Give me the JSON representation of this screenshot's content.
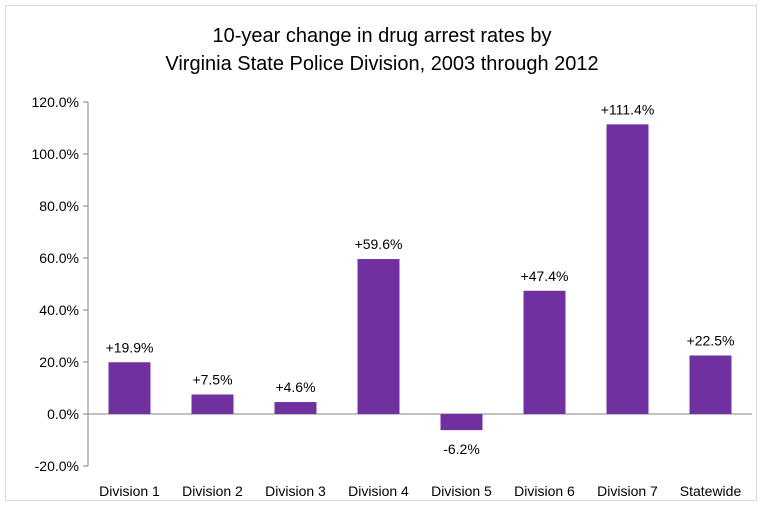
{
  "chart_data": {
    "type": "bar",
    "title_lines": [
      "10-year change in drug arrest rates by",
      "Virginia State Police Division, 2003 through 2012"
    ],
    "categories": [
      "Division 1",
      "Division 2",
      "Division 3",
      "Division 4",
      "Division 5",
      "Division 6",
      "Division 7",
      "Statewide"
    ],
    "values": [
      19.9,
      7.5,
      4.6,
      59.6,
      -6.2,
      47.4,
      111.4,
      22.5
    ],
    "data_labels": [
      "+19.9%",
      "+7.5%",
      "+4.6%",
      "+59.6%",
      "-6.2%",
      "+47.4%",
      "+111.4%",
      "+22.5%"
    ],
    "y_ticks": [
      120,
      100,
      80,
      60,
      40,
      20,
      0,
      -20
    ],
    "y_tick_labels": [
      "120.0%",
      "100.0%",
      "80.0%",
      "60.0%",
      "40.0%",
      "20.0%",
      "0.0%",
      "-20.0%"
    ],
    "ylim": [
      -20,
      120
    ],
    "xlabel": "",
    "ylabel": "",
    "grid": false,
    "bar_color": "#7030a0",
    "axis_color": "#868686"
  }
}
